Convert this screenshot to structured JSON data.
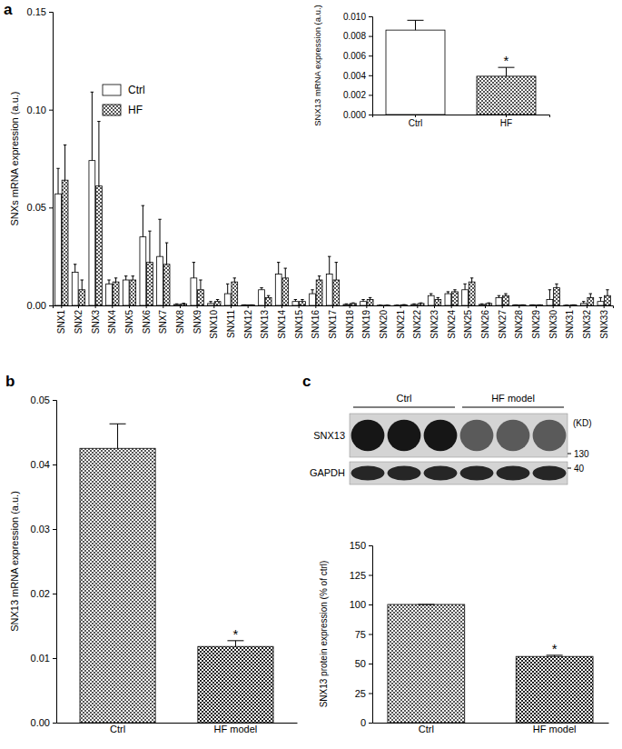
{
  "chart_data": [
    {
      "type": "bar",
      "title": "a",
      "ylabel": "SNXs mRNA expression (a.u.)",
      "categories": [
        "SNX1",
        "SNX2",
        "SNX3",
        "SNX4",
        "SNX5",
        "SNX6",
        "SNX7",
        "SNX8",
        "SNX9",
        "SNX10",
        "SNX11",
        "SNX12",
        "SNX13",
        "SNX14",
        "SNX15",
        "SNX16",
        "SNX17",
        "SNX18",
        "SNX19",
        "SNX20",
        "SNX21",
        "SNX22",
        "SNX23",
        "SNX24",
        "SNX25",
        "SNX26",
        "SNX27",
        "SNX28",
        "SNX29",
        "SNX30",
        "SNX31",
        "SNX32",
        "SNX33"
      ],
      "series": [
        {
          "name": "Ctrl",
          "color": "#ffffff",
          "values": [
            0.057,
            0.017,
            0.074,
            0.011,
            0.013,
            0.035,
            0.025,
            0.0005,
            0.014,
            0.001,
            0.006,
            0.0002,
            0.008,
            0.016,
            0.002,
            0.006,
            0.016,
            0.0005,
            0.002,
            0.0001,
            0.0001,
            0.0005,
            0.005,
            0.006,
            0.008,
            0.0005,
            0.004,
            0.0002,
            0.0002,
            0.003,
            0.0001,
            0.001,
            0.002
          ],
          "errors": [
            0.013,
            0.004,
            0.035,
            0.002,
            0.002,
            0.016,
            0.019,
            0.0003,
            0.008,
            0.001,
            0.005,
            0.0001,
            0.001,
            0.006,
            0.001,
            0.002,
            0.009,
            0.0003,
            0.001,
            0.0001,
            0.0001,
            0.0003,
            0.001,
            0.001,
            0.003,
            0.0003,
            0.001,
            0.0001,
            0.0001,
            0.005,
            0.0001,
            0.001,
            0.002
          ]
        },
        {
          "name": "HF",
          "color": "#555555",
          "values": [
            0.064,
            0.008,
            0.061,
            0.012,
            0.013,
            0.022,
            0.021,
            0.0008,
            0.008,
            0.002,
            0.012,
            0.0002,
            0.004,
            0.014,
            0.002,
            0.013,
            0.013,
            0.001,
            0.003,
            0.0001,
            0.0003,
            0.001,
            0.003,
            0.007,
            0.012,
            0.001,
            0.005,
            0.0002,
            0.0002,
            0.009,
            0.0002,
            0.004,
            0.005
          ],
          "errors": [
            0.018,
            0.005,
            0.033,
            0.002,
            0.002,
            0.016,
            0.011,
            0.0003,
            0.005,
            0.001,
            0.002,
            0.0001,
            0.001,
            0.005,
            0.001,
            0.002,
            0.009,
            0.0003,
            0.001,
            0.0001,
            0.0001,
            0.0003,
            0.001,
            0.001,
            0.002,
            0.0003,
            0.001,
            0.0001,
            0.0001,
            0.002,
            0.0001,
            0.002,
            0.003
          ]
        }
      ],
      "ylim": [
        0,
        0.15
      ],
      "yticks": [
        {
          "value": 0,
          "label": "0.00"
        },
        0.05,
        {
          "value": 0.1,
          "label": "0.10"
        },
        0.15
      ],
      "legend": "upper left"
    },
    {
      "type": "bar",
      "ylabel": "SNX13 mRNA expression (a.u.)",
      "categories": [
        "Ctrl",
        "HF"
      ],
      "values": [
        0.0086,
        0.0039
      ],
      "errors": [
        0.001,
        0.0009
      ],
      "colors": [
        "#ffffff",
        "#555555"
      ],
      "annotations": [
        null,
        "*"
      ],
      "ylim": [
        0,
        0.01
      ],
      "yticks": [
        {
          "value": 0,
          "label": "0.000"
        },
        0.002,
        0.004,
        0.006,
        0.008,
        {
          "value": 0.01,
          "label": "0.010"
        }
      ]
    },
    {
      "type": "bar",
      "title": "b",
      "ylabel": "SNX13 mRNA expression (a.u.)",
      "categories": [
        "Ctrl",
        "HF model"
      ],
      "values": [
        0.0425,
        0.0118
      ],
      "errors": [
        0.0038,
        0.0009
      ],
      "colors": [
        "#444444",
        "#222222"
      ],
      "annotations": [
        null,
        "*"
      ],
      "ylim": [
        0,
        0.05
      ],
      "yticks": [
        {
          "value": 0,
          "label": "0.00"
        },
        0.01,
        0.02,
        0.03,
        0.04,
        0.05
      ]
    },
    {
      "type": "bar",
      "title": "c",
      "ylabel": "SNX13 protein expression (% of ctrl)",
      "categories": [
        "Ctrl",
        "HF model"
      ],
      "values": [
        100,
        56
      ],
      "errors": [
        0,
        1
      ],
      "colors": [
        "#444444",
        "#222222"
      ],
      "annotations": [
        null,
        "*"
      ],
      "ylim": [
        0,
        150
      ],
      "yticks": [
        0,
        25,
        50,
        75,
        100,
        125,
        150
      ]
    }
  ],
  "blot": {
    "groups": [
      "Ctrl",
      "HF model"
    ],
    "rows": [
      "SNX13",
      "GAPDH"
    ],
    "unit": "(KD)",
    "markers": [
      130,
      40
    ]
  }
}
